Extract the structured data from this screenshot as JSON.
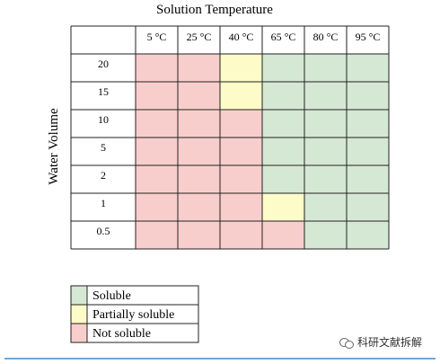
{
  "chart_data": {
    "type": "heatmap",
    "title": "Solution Temperature",
    "ylabel": "Water Volume",
    "columns": [
      "5 °C",
      "25 °C",
      "40 °C",
      "65 °C",
      "80 °C",
      "95 °C"
    ],
    "rows": [
      "20",
      "15",
      "10",
      "5",
      "2",
      "1",
      "0.5"
    ],
    "cells": [
      [
        "not",
        "not",
        "partial",
        "soluble",
        "soluble",
        "soluble"
      ],
      [
        "not",
        "not",
        "partial",
        "soluble",
        "soluble",
        "soluble"
      ],
      [
        "not",
        "not",
        "not",
        "soluble",
        "soluble",
        "soluble"
      ],
      [
        "not",
        "not",
        "not",
        "soluble",
        "soluble",
        "soluble"
      ],
      [
        "not",
        "not",
        "not",
        "soluble",
        "soluble",
        "soluble"
      ],
      [
        "not",
        "not",
        "not",
        "partial",
        "soluble",
        "soluble"
      ],
      [
        "not",
        "not",
        "not",
        "not",
        "soluble",
        "soluble"
      ]
    ],
    "legend": [
      {
        "key": "soluble",
        "label": "Soluble",
        "color": "#d5e8d4"
      },
      {
        "key": "partial",
        "label": "Partially soluble",
        "color": "#fdfbc7"
      },
      {
        "key": "not",
        "label": "Not soluble",
        "color": "#f8cecc"
      }
    ]
  },
  "watermark": "科研文献拆解"
}
